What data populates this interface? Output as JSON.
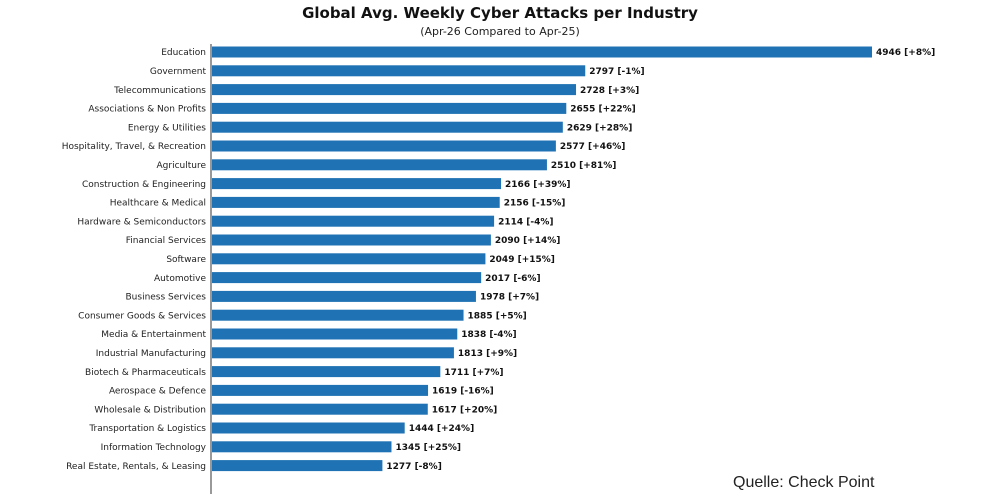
{
  "chart_data": {
    "type": "bar",
    "orientation": "horizontal",
    "title": "Global Avg. Weekly Cyber Attacks per Industry",
    "subtitle": "(Apr-26 Compared to Apr-25)",
    "bar_color": "#1f72b4",
    "xlim": [
      0,
      5200
    ],
    "grid": false,
    "categories": [
      "Education",
      "Government",
      "Telecommunications",
      "Associations & Non Profits",
      "Energy & Utilities",
      "Hospitality, Travel, & Recreation",
      "Agriculture",
      "Construction & Engineering",
      "Healthcare & Medical",
      "Hardware & Semiconductors",
      "Financial Services",
      "Software",
      "Automotive",
      "Business Services",
      "Consumer Goods & Services",
      "Media & Entertainment",
      "Industrial Manufacturing",
      "Biotech & Pharmaceuticals",
      "Aerospace & Defence",
      "Wholesale & Distribution",
      "Transportation & Logistics",
      "Information Technology",
      "Real Estate, Rentals, & Leasing"
    ],
    "values": [
      4946,
      2797,
      2728,
      2655,
      2629,
      2577,
      2510,
      2166,
      2156,
      2114,
      2090,
      2049,
      2017,
      1978,
      1885,
      1838,
      1813,
      1711,
      1619,
      1617,
      1444,
      1345,
      1277
    ],
    "data_labels": [
      "4946 [+8%]",
      "2797 [-1%]",
      "2728 [+3%]",
      "2655 [+22%]",
      "2629 [+28%]",
      "2577 [+46%]",
      "2510 [+81%]",
      "2166 [+39%]",
      "2156 [-15%]",
      "2114 [-4%]",
      "2090 [+14%]",
      "2049 [+15%]",
      "2017 [-6%]",
      "1978 [+7%]",
      "1885 [+5%]",
      "1838 [-4%]",
      "1813 [+9%]",
      "1711 [+7%]",
      "1619 [-16%]",
      "1617 [+20%]",
      "1444 [+24%]",
      "1345 [+25%]",
      "1277 [-8%]"
    ]
  },
  "source_text": "Quelle: Check Point"
}
